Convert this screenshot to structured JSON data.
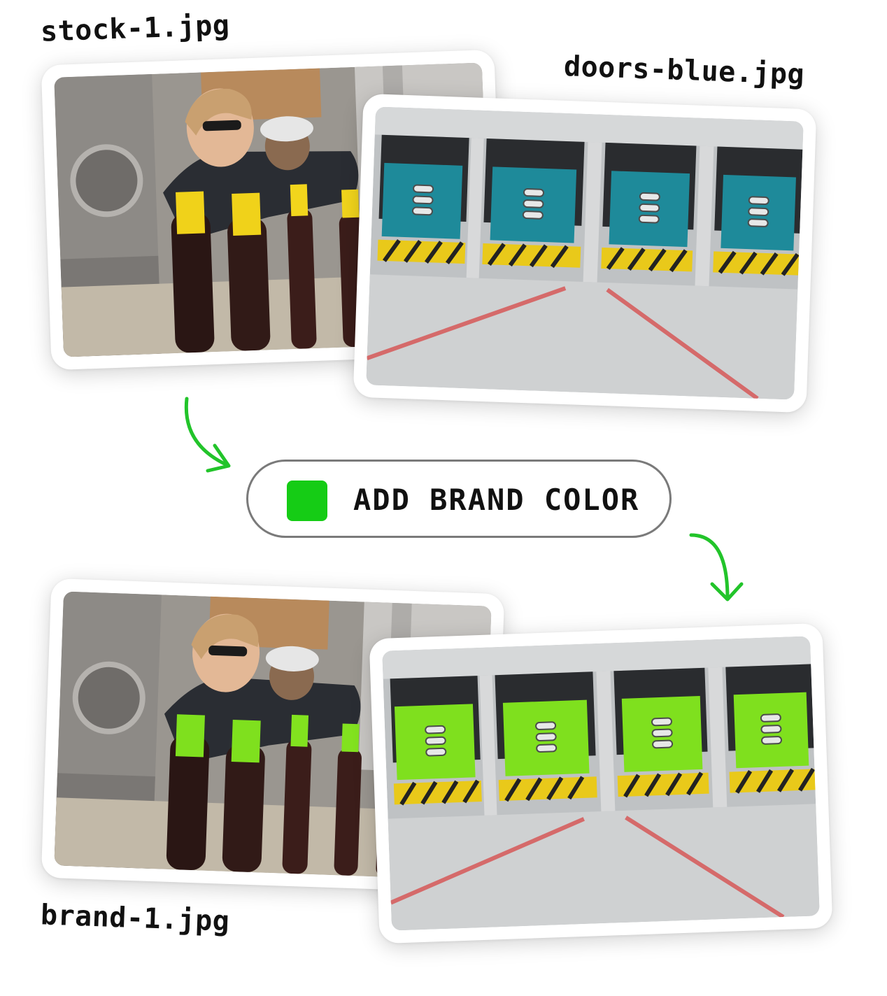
{
  "files": {
    "top_left": "stock-1.jpg",
    "top_right": "doors-blue.jpg",
    "bottom_left": "brand-1.jpg"
  },
  "action": {
    "label": "ADD BRAND COLOR",
    "swatch_color": "#15cc15"
  },
  "colors": {
    "original_accent": "#1e8a9a",
    "brand_accent": "#7fe01e",
    "arrow": "#22c42a"
  }
}
